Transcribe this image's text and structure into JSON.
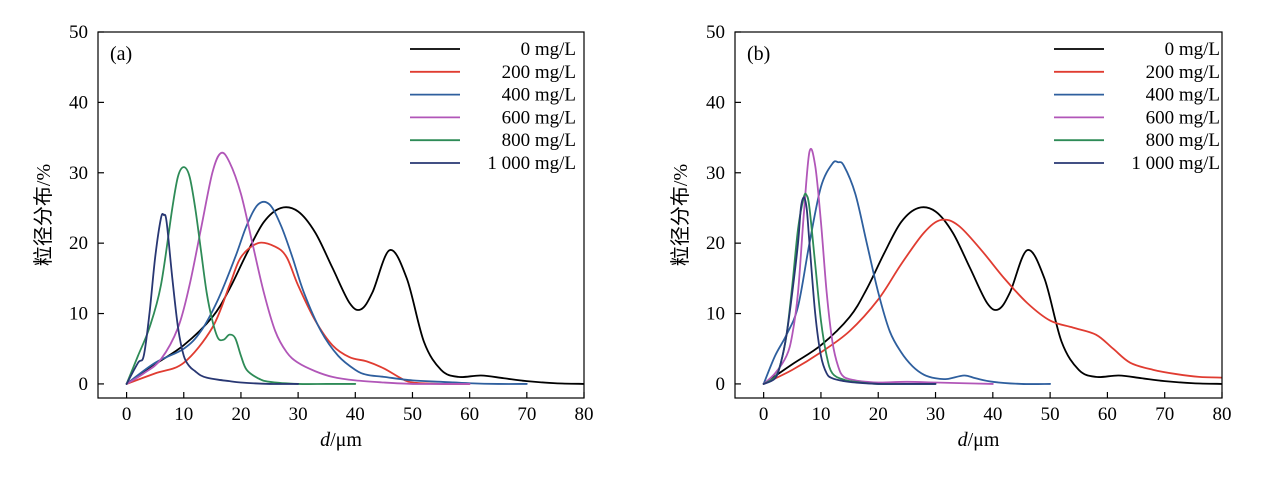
{
  "chart_data": [
    {
      "type": "line",
      "panel_label": "(a)",
      "xlabel_italic": "d",
      "xlabel_rest": "/μm",
      "ylabel": "粒径分布/%",
      "xlim": [
        -5,
        80
      ],
      "ylim": [
        -2,
        50
      ],
      "x_ticks": [
        0,
        10,
        20,
        30,
        40,
        50,
        60,
        70,
        80
      ],
      "y_ticks": [
        0,
        10,
        20,
        30,
        40,
        50
      ],
      "legend_position": "top-right",
      "series": [
        {
          "name": "0 mg/L",
          "color": "#000000",
          "x": [
            0,
            5,
            10,
            15,
            18,
            21,
            24,
            27,
            30,
            33,
            36,
            39,
            41,
            43,
            46,
            49,
            52,
            55,
            58,
            62,
            66,
            70,
            75,
            80
          ],
          "y": [
            0,
            2.8,
            5.5,
            9.5,
            13.5,
            18.5,
            23,
            25,
            24.5,
            21.5,
            16.5,
            11.5,
            10.6,
            13,
            19,
            15,
            6,
            2,
            1,
            1.2,
            0.8,
            0.4,
            0.1,
            0
          ]
        },
        {
          "name": "200 mg/L",
          "color": "#e03c31",
          "x": [
            0,
            5,
            10,
            15,
            18,
            20,
            23,
            26,
            28,
            30,
            33,
            36,
            39,
            42,
            45,
            48,
            50,
            55,
            60
          ],
          "y": [
            0,
            1.5,
            3,
            8,
            14,
            18,
            20,
            19.5,
            18,
            14,
            9,
            5.5,
            3.8,
            3.2,
            2.2,
            0.8,
            0.2,
            0,
            0
          ]
        },
        {
          "name": "400 mg/L",
          "color": "#2e5f9e",
          "x": [
            0,
            5,
            10,
            13,
            16,
            19,
            21,
            23,
            25,
            27,
            29,
            31,
            34,
            37,
            40,
            42,
            45,
            50,
            55,
            60,
            65,
            70
          ],
          "y": [
            0,
            3,
            5,
            7.5,
            12,
            18,
            22.5,
            25.5,
            25.5,
            22.5,
            18,
            13,
            7.5,
            4,
            2,
            1.3,
            1,
            0.5,
            0.3,
            0.1,
            0,
            0
          ]
        },
        {
          "name": "600 mg/L",
          "color": "#b156b8",
          "x": [
            0,
            3,
            6,
            9,
            11,
            13,
            15,
            16.5,
            18,
            20,
            22,
            24,
            26,
            28,
            30,
            33,
            36,
            40,
            45,
            50,
            55,
            60
          ],
          "y": [
            0,
            1.5,
            3.5,
            8,
            14,
            22,
            30,
            32.8,
            31.5,
            27,
            20,
            13,
            7.5,
            4.5,
            3,
            1.8,
            1,
            0.5,
            0.2,
            0,
            0,
            0
          ]
        },
        {
          "name": "800 mg/L",
          "color": "#2e8b57",
          "x": [
            0,
            2,
            4,
            6,
            8,
            9,
            10,
            11,
            12,
            13,
            14,
            15,
            16,
            17,
            18,
            19,
            20,
            21,
            23,
            25,
            30,
            35,
            40
          ],
          "y": [
            0,
            4,
            8,
            14,
            25,
            29.5,
            30.8,
            29.5,
            25,
            19,
            13,
            9,
            6.5,
            6.3,
            7,
            6.5,
            4,
            2,
            0.8,
            0.3,
            0,
            0,
            0
          ]
        },
        {
          "name": "1 000 mg/L",
          "color": "#283773",
          "x": [
            0,
            2,
            3,
            4,
            5,
            6,
            6.5,
            7,
            8,
            9,
            10,
            11,
            12,
            13,
            14,
            16,
            18,
            20,
            25,
            30
          ],
          "y": [
            0,
            3,
            4,
            10,
            18,
            23.5,
            24,
            23,
            15,
            8,
            4,
            2.5,
            1.8,
            1.2,
            0.9,
            0.6,
            0.4,
            0.2,
            0,
            0
          ]
        }
      ]
    },
    {
      "type": "line",
      "panel_label": "(b)",
      "xlabel_italic": "d",
      "xlabel_rest": "/μm",
      "ylabel": "粒径分布/%",
      "xlim": [
        -5,
        80
      ],
      "ylim": [
        -2,
        50
      ],
      "x_ticks": [
        0,
        10,
        20,
        30,
        40,
        50,
        60,
        70,
        80
      ],
      "y_ticks": [
        0,
        10,
        20,
        30,
        40,
        50
      ],
      "legend_position": "top-right",
      "series": [
        {
          "name": "0 mg/L",
          "color": "#000000",
          "x": [
            0,
            5,
            10,
            15,
            18,
            21,
            24,
            27,
            30,
            33,
            36,
            39,
            41,
            43,
            46,
            49,
            52,
            55,
            58,
            62,
            66,
            70,
            75,
            80
          ],
          "y": [
            0,
            2.8,
            5.5,
            9.5,
            13.5,
            18.5,
            23,
            25,
            24.5,
            21.5,
            16.5,
            11.5,
            10.6,
            13,
            19,
            15,
            6,
            2,
            1,
            1.2,
            0.8,
            0.4,
            0.1,
            0
          ]
        },
        {
          "name": "200 mg/L",
          "color": "#e03c31",
          "x": [
            0,
            5,
            10,
            15,
            20,
            24,
            28,
            31,
            34,
            38,
            42,
            46,
            50,
            54,
            58,
            61,
            64,
            68,
            72,
            76,
            80
          ],
          "y": [
            0,
            2,
            4.5,
            7.5,
            12,
            17,
            21.5,
            23.3,
            22.5,
            19,
            15,
            11.5,
            9,
            8,
            7,
            5,
            3,
            2,
            1.4,
            1,
            0.9
          ]
        },
        {
          "name": "400 mg/L",
          "color": "#2e5f9e",
          "x": [
            0,
            2,
            4,
            6,
            8,
            10,
            12,
            13,
            14,
            16,
            18,
            20,
            22,
            24,
            26,
            28,
            30,
            32,
            35,
            37,
            40,
            45,
            50
          ],
          "y": [
            0,
            4,
            7,
            11,
            20,
            28,
            31.3,
            31.5,
            31,
            27,
            20,
            13,
            7.5,
            4.5,
            2.5,
            1.3,
            0.8,
            0.7,
            1.2,
            0.8,
            0.3,
            0,
            0
          ]
        },
        {
          "name": "600 mg/L",
          "color": "#b156b8",
          "x": [
            0,
            2,
            4,
            5,
            6,
            7,
            8,
            9,
            10,
            11,
            12,
            13,
            14,
            16,
            18,
            20,
            25,
            30,
            35,
            40
          ],
          "y": [
            0,
            1.5,
            4,
            7,
            13,
            24,
            33,
            31,
            23,
            13,
            6,
            2.5,
            1,
            0.5,
            0.3,
            0.2,
            0.3,
            0.2,
            0.1,
            0
          ]
        },
        {
          "name": "800 mg/L",
          "color": "#2e8b57",
          "x": [
            0,
            2,
            3,
            4,
            5,
            6,
            7,
            7.5,
            8,
            9,
            10,
            11,
            12,
            14,
            16,
            20,
            25,
            30
          ],
          "y": [
            0,
            1,
            3,
            7,
            14,
            22,
            26.5,
            26.8,
            25,
            17,
            9,
            4,
            1.5,
            0.6,
            0.3,
            0,
            0,
            0
          ]
        },
        {
          "name": "1 000 mg/L",
          "color": "#283773",
          "x": [
            0,
            2,
            3,
            4,
            5,
            6,
            6.5,
            7,
            7.5,
            8,
            9,
            10,
            11,
            12,
            14,
            16,
            20,
            25,
            30
          ],
          "y": [
            0,
            0.8,
            3,
            7,
            13,
            20,
            25,
            26.5,
            25,
            20,
            10,
            4,
            1.5,
            0.8,
            0.4,
            0.2,
            0,
            0,
            0
          ]
        }
      ]
    }
  ]
}
